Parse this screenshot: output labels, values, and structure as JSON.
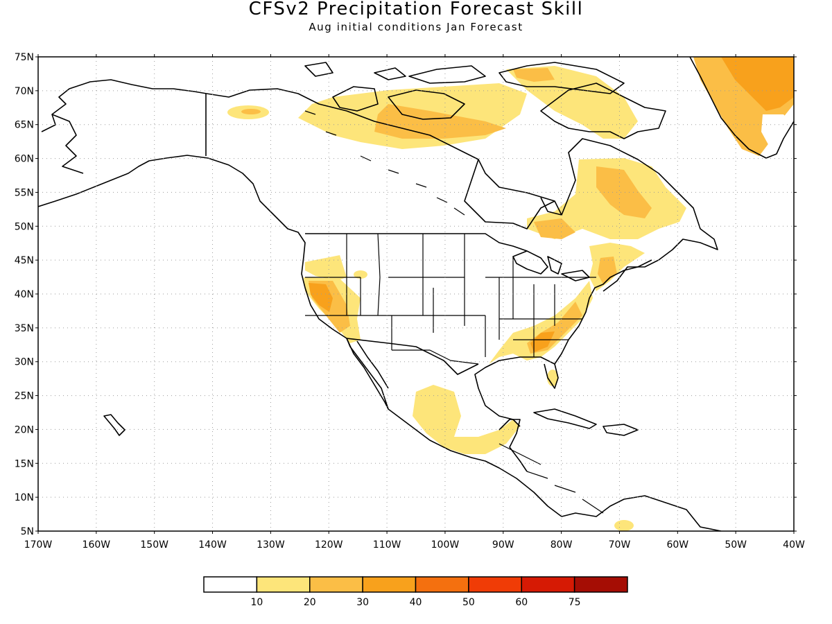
{
  "header": {
    "title": "CFSv2 Precipitation Forecast Skill",
    "subtitle": "Aug initial conditions  Jan Forecast"
  },
  "axes": {
    "lat_labels": [
      "75N",
      "70N",
      "65N",
      "60N",
      "55N",
      "50N",
      "45N",
      "40N",
      "35N",
      "30N",
      "25N",
      "20N",
      "15N",
      "10N",
      "5N"
    ],
    "lon_labels": [
      "170W",
      "160W",
      "150W",
      "140W",
      "130W",
      "120W",
      "110W",
      "100W",
      "90W",
      "80W",
      "70W",
      "60W",
      "50W",
      "40W"
    ]
  },
  "legend": {
    "colors": [
      "#ffffff",
      "#fde57a",
      "#fbbe46",
      "#f8a11c",
      "#f4700f",
      "#f03c06",
      "#d61a04",
      "#a50d04"
    ],
    "labels": [
      "10",
      "20",
      "30",
      "40",
      "50",
      "60",
      "75"
    ]
  },
  "colors": {
    "c1": "#fde57a",
    "c2": "#fbbe46",
    "c3": "#f8a11c",
    "c4": "#f4700f",
    "coast": "#000000",
    "grid": "#9a9a9a"
  }
}
